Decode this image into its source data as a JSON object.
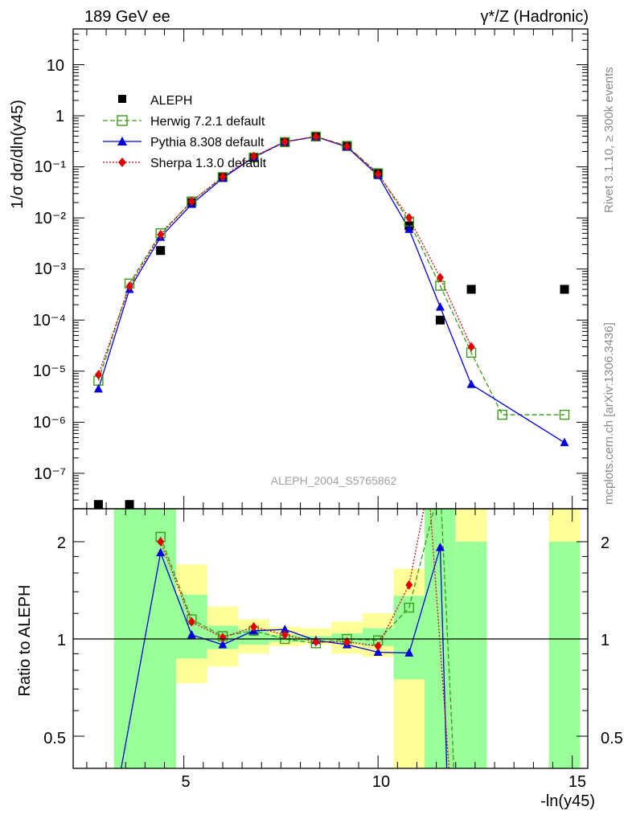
{
  "chart_data": [
    {
      "type": "scatter",
      "panel": "main",
      "title_left": "189 GeV ee",
      "title_right": "γ*/Z (Hadronic)",
      "ylabel": "1/σ  dσ/dln(y45)",
      "yscale": "log",
      "ylim": [
        2.5e-08,
        50
      ],
      "xlim": [
        2.15,
        15.4
      ],
      "y_tick_labels": [
        "10",
        "1",
        "10⁻¹",
        "10⁻²",
        "10⁻³",
        "10⁻⁴",
        "10⁻⁵",
        "10⁻⁶",
        "10⁻⁷"
      ],
      "y_tick_values": [
        10,
        1,
        0.1,
        0.01,
        0.001,
        0.0001,
        1e-05,
        1e-06,
        1e-07
      ],
      "watermark": "ALEPH_2004_S5765862",
      "legend": [
        {
          "name": "ALEPH",
          "color": "#000000",
          "marker": "square"
        },
        {
          "name": "Herwig 7.2.1 default",
          "color": "#3c9a19",
          "marker": "open-square"
        },
        {
          "name": "Pythia 8.308 default",
          "color": "#0000dd",
          "marker": "triangle"
        },
        {
          "name": "Sherpa 1.3.0 default",
          "color": "#e00000",
          "marker": "diamond"
        }
      ],
      "series": [
        {
          "name": "ALEPH",
          "x": [
            2.8,
            3.6,
            4.4,
            5.2,
            6.0,
            6.8,
            7.6,
            8.4,
            9.2,
            10.0,
            10.8,
            11.6,
            12.4,
            14.8
          ],
          "y": [
            2.45e-08,
            2.45e-08,
            0.0023,
            0.02,
            0.062,
            0.152,
            0.305,
            0.395,
            0.255,
            0.075,
            0.007,
            0.0001,
            0.0004,
            0.0004
          ]
        },
        {
          "name": "Herwig 7.2.1 default",
          "x": [
            2.8,
            3.6,
            4.4,
            5.2,
            6.0,
            6.8,
            7.6,
            8.4,
            9.2,
            10.0,
            10.8,
            11.6,
            12.4,
            13.2,
            14.8
          ],
          "y": [
            6.5e-06,
            0.00052,
            0.005,
            0.021,
            0.063,
            0.152,
            0.305,
            0.392,
            0.257,
            0.075,
            0.0085,
            0.00047,
            2.3e-05,
            1.4e-06,
            1.4e-06
          ]
        },
        {
          "name": "Pythia 8.308 default",
          "x": [
            2.8,
            3.6,
            4.4,
            5.2,
            6.0,
            6.8,
            7.6,
            8.4,
            9.2,
            10.0,
            10.8,
            11.6,
            12.4,
            14.8
          ],
          "y": [
            4.5e-06,
            0.0004,
            0.0042,
            0.0185,
            0.06,
            0.155,
            0.31,
            0.39,
            0.245,
            0.068,
            0.006,
            0.00018,
            5.5e-06,
            4e-07
          ]
        },
        {
          "name": "Sherpa 1.3.0 default",
          "x": [
            2.8,
            3.6,
            4.4,
            5.2,
            6.0,
            6.8,
            7.6,
            8.4,
            9.2,
            10.0,
            10.8,
            11.6,
            12.4
          ],
          "y": [
            8.5e-06,
            0.00046,
            0.0047,
            0.021,
            0.064,
            0.16,
            0.31,
            0.39,
            0.25,
            0.072,
            0.01,
            0.00068,
            3e-05
          ]
        }
      ]
    },
    {
      "type": "line",
      "panel": "ratio",
      "ylabel": "Ratio to ALEPH",
      "xlabel": "-ln(y45)",
      "yscale": "log",
      "ylim": [
        0.4,
        2.4
      ],
      "xlim": [
        2.15,
        15.4
      ],
      "x_tick_labels": [
        "5",
        "10",
        "15"
      ],
      "x_tick_values": [
        5,
        10,
        15
      ],
      "y_tick_labels": [
        "0.5",
        "1",
        "2"
      ],
      "y_tick_values": [
        0.5,
        1,
        2
      ],
      "reference_line": 1,
      "band_bins": [
        {
          "x0": 3.2,
          "x1": 4.8,
          "green": [
            0.3,
            3.0
          ],
          "yellow": [
            0.3,
            3.0
          ]
        },
        {
          "x0": 4.8,
          "x1": 5.6,
          "green": [
            0.87,
            1.37
          ],
          "yellow": [
            0.73,
            1.7
          ]
        },
        {
          "x0": 5.6,
          "x1": 6.4,
          "green": [
            0.93,
            1.1
          ],
          "yellow": [
            0.82,
            1.26
          ]
        },
        {
          "x0": 6.4,
          "x1": 7.2,
          "green": [
            0.96,
            1.07
          ],
          "yellow": [
            0.9,
            1.15
          ]
        },
        {
          "x0": 7.2,
          "x1": 8.0,
          "green": [
            0.98,
            1.03
          ],
          "yellow": [
            0.95,
            1.09
          ]
        },
        {
          "x0": 8.0,
          "x1": 8.8,
          "green": [
            0.985,
            1.02
          ],
          "yellow": [
            0.96,
            1.08
          ]
        },
        {
          "x0": 8.8,
          "x1": 9.6,
          "green": [
            0.97,
            1.04
          ],
          "yellow": [
            0.9,
            1.13
          ]
        },
        {
          "x0": 9.6,
          "x1": 10.4,
          "green": [
            0.95,
            1.08
          ],
          "yellow": [
            0.88,
            1.2
          ]
        },
        {
          "x0": 10.4,
          "x1": 11.2,
          "green": [
            0.75,
            1.36
          ],
          "yellow": [
            0.38,
            1.65
          ]
        },
        {
          "x0": 11.2,
          "x1": 12.0,
          "green": [
            0.3,
            3.0
          ],
          "yellow": [
            0.3,
            3.0
          ]
        },
        {
          "x0": 12.0,
          "x1": 12.8,
          "green": [
            0.3,
            2.0
          ],
          "yellow": [
            0.3,
            3.0
          ]
        },
        {
          "x0": 14.4,
          "x1": 15.2,
          "green": [
            0.3,
            2.0
          ],
          "yellow": [
            0.3,
            3.0
          ]
        }
      ],
      "series": [
        {
          "name": "Herwig 7.2.1 default",
          "x": [
            4.4,
            5.2,
            6.0,
            6.8,
            7.6,
            8.4,
            9.2,
            10.0,
            10.8,
            11.6,
            12.0
          ],
          "y": [
            2.07,
            1.15,
            1.02,
            1.06,
            1.0,
            0.97,
            1.0,
            0.99,
            1.25,
            3.0,
            0.3
          ]
        },
        {
          "name": "Pythia 8.308 default",
          "x": [
            3.2,
            4.4,
            5.2,
            6.0,
            6.8,
            7.6,
            8.4,
            9.2,
            10.0,
            10.8,
            11.6,
            11.8
          ],
          "y": [
            0.3,
            1.85,
            1.03,
            0.96,
            1.06,
            1.07,
            0.99,
            0.96,
            0.91,
            0.905,
            1.92,
            0.3
          ]
        },
        {
          "name": "Sherpa 1.3.0 default",
          "x": [
            4.4,
            5.2,
            6.0,
            6.8,
            7.6,
            8.4,
            9.2,
            10.0,
            10.8,
            11.3,
            11.9
          ],
          "y": [
            2.0,
            1.13,
            1.01,
            1.09,
            1.03,
            0.98,
            0.98,
            0.95,
            1.47,
            3.0,
            0.3
          ]
        }
      ]
    }
  ],
  "side_text": {
    "rivet": "Rivet 3.1.10, ≥ 300k events",
    "mcplots": "mcplots.cern.ch [arXiv:1306.3436]"
  }
}
